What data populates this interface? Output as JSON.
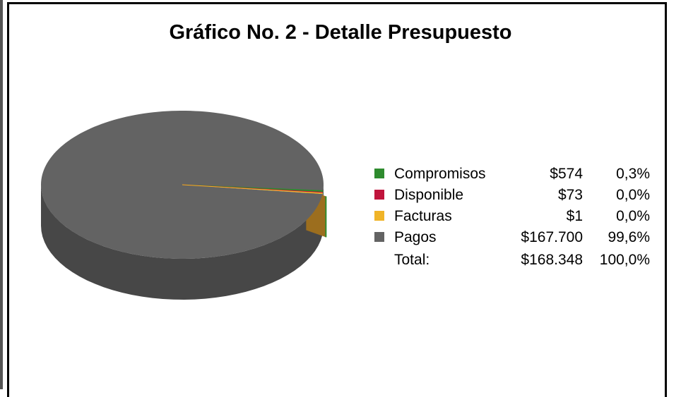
{
  "title": "Gráfico No. 2 - Detalle Presupuesto",
  "chart_data": {
    "type": "pie",
    "title": "Gráfico No. 2 - Detalle Presupuesto",
    "series": [
      {
        "name": "Compromisos",
        "value": 574,
        "value_label": "$574",
        "percent_label": "0,3%",
        "color": "#2e8b2e"
      },
      {
        "name": "Disponible",
        "value": 73,
        "value_label": "$73",
        "percent_label": "0,0%",
        "color": "#c0143c"
      },
      {
        "name": "Facturas",
        "value": 1,
        "value_label": "$1",
        "percent_label": "0,0%",
        "color": "#f0b428"
      },
      {
        "name": "Pagos",
        "value": 167700,
        "value_label": "$167.700",
        "percent_label": "99,6%",
        "color": "#636363"
      }
    ],
    "total": {
      "label": "Total:",
      "value": 168348,
      "value_label": "$168.348",
      "percent_label": "100,0%"
    },
    "legend_position": "right",
    "style": "3d"
  }
}
